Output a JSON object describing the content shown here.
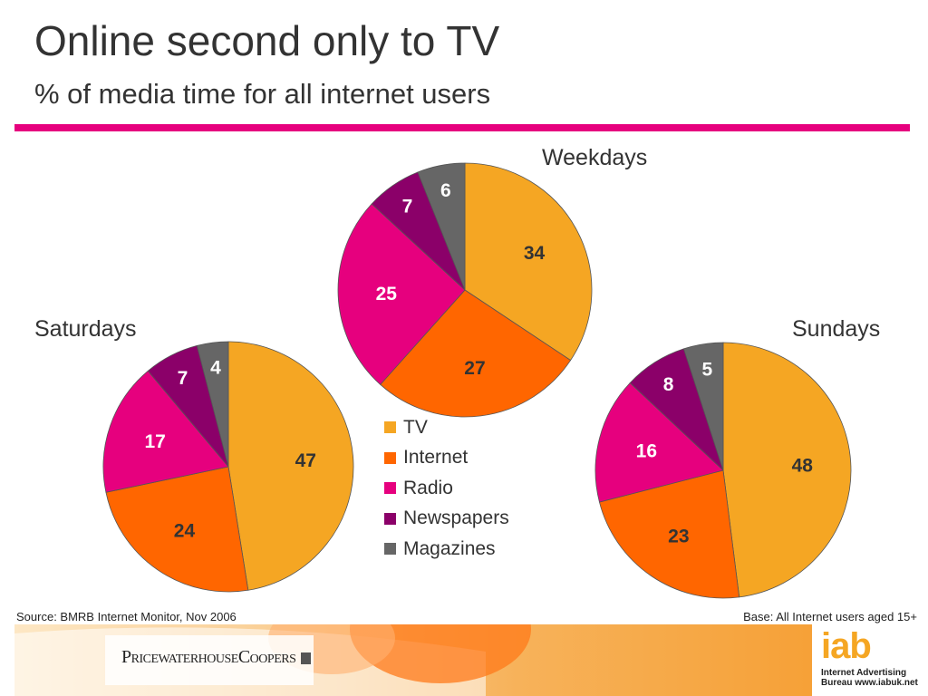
{
  "header": {
    "title": "Online second only to TV",
    "subtitle": "% of media time for all internet users"
  },
  "chart_data": {
    "type": "pie",
    "categories": [
      "TV",
      "Internet",
      "Radio",
      "Newspapers",
      "Magazines"
    ],
    "colors": [
      "#f5a623",
      "#ff6600",
      "#e6007e",
      "#8b0069",
      "#666666"
    ],
    "label_colors": [
      "#333333",
      "#333333",
      "#ffffff",
      "#ffffff",
      "#ffffff"
    ],
    "charts": [
      {
        "title": "Weekdays",
        "values": [
          34,
          27,
          25,
          7,
          6
        ]
      },
      {
        "title": "Saturdays",
        "values": [
          47,
          24,
          17,
          7,
          4
        ]
      },
      {
        "title": "Sundays",
        "values": [
          48,
          23,
          16,
          8,
          5
        ]
      }
    ],
    "legend_position": "center"
  },
  "footer": {
    "source": "Source: BMRB Internet Monitor, Nov 2006",
    "base": "Base: All Internet users aged 15+",
    "pwc_logo": "PricewaterhouseCoopers",
    "iab_logo": "iab",
    "iab_line1": "Internet Advertising",
    "iab_line2": "Bureau www.iabuk.net"
  }
}
